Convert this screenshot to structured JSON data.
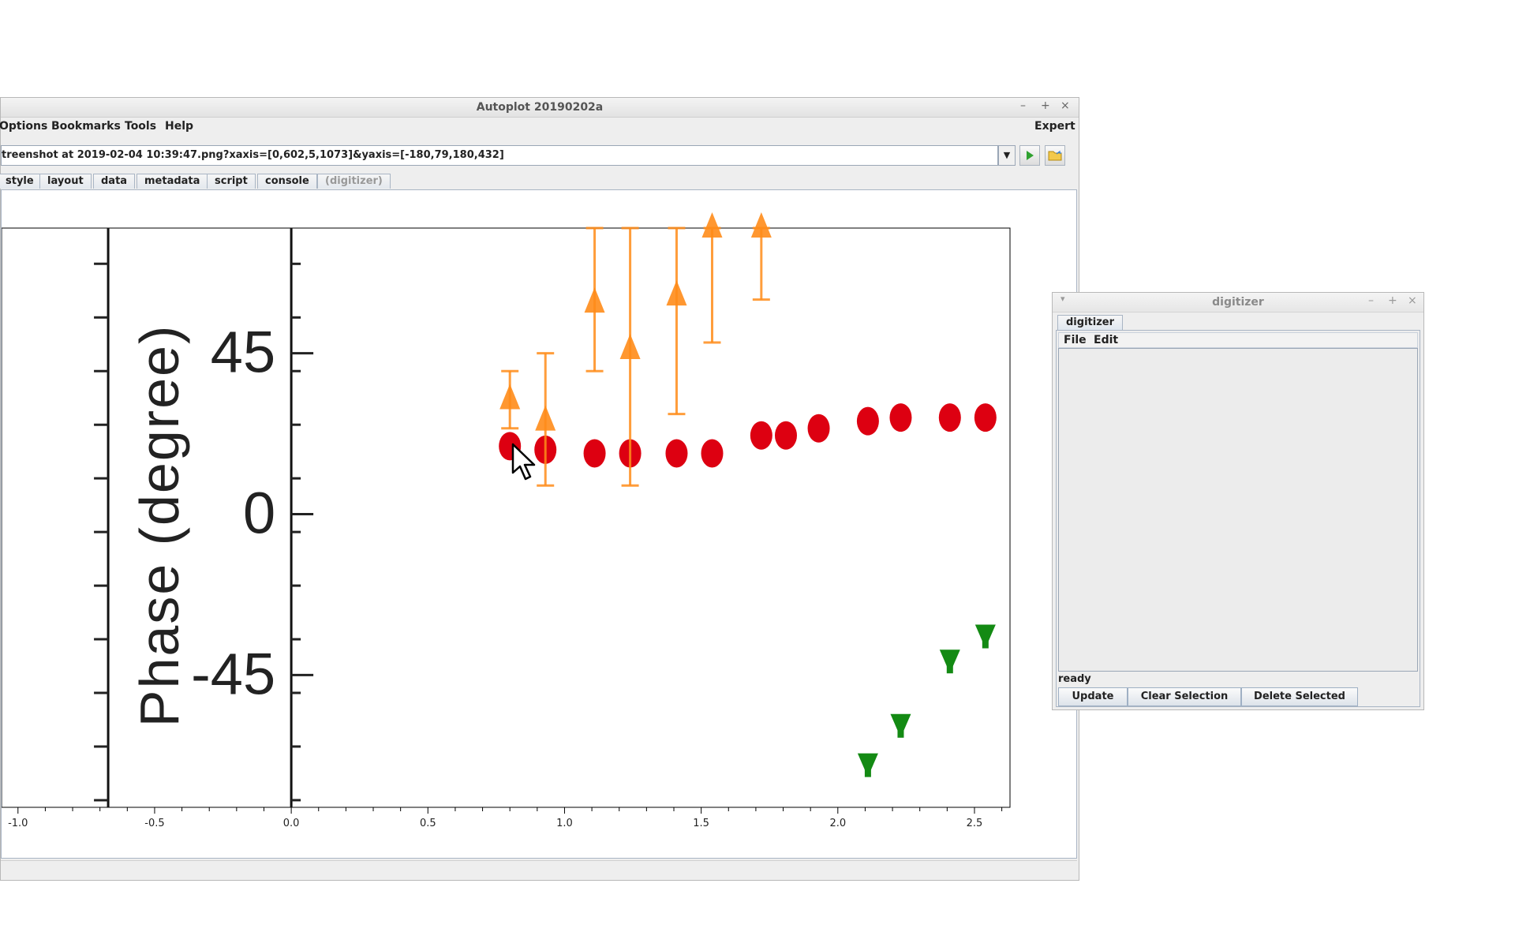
{
  "main_window": {
    "title": "Autoplot 20190202a",
    "controls": {
      "minimize": "–",
      "maximize": "+",
      "close": "×"
    },
    "menus": [
      "Options",
      "Bookmarks",
      "Tools",
      "Help"
    ],
    "expert_label": "Expert",
    "url": "treenshot at 2019-02-04 10:39:47.png?xaxis=[0,602,5,1073]&yaxis=[-180,79,180,432]",
    "dropdown_glyph": "▼",
    "tabs": [
      {
        "label": "style",
        "enabled": true
      },
      {
        "label": "layout",
        "enabled": true
      },
      {
        "label": "data",
        "enabled": true
      },
      {
        "label": "metadata",
        "enabled": true
      },
      {
        "label": "script",
        "enabled": true
      },
      {
        "label": "console",
        "enabled": true
      },
      {
        "label": "(digitizer)",
        "enabled": false
      }
    ]
  },
  "plot": {
    "y_label": "Phase (degree)",
    "y_ticks": [
      "45",
      "0",
      "-45"
    ],
    "x_ticks": [
      "-1.0",
      "-0.5",
      "0.0",
      "0.5",
      "1.0",
      "1.5",
      "2.0",
      "2.5"
    ]
  },
  "chart_data": {
    "type": "scatter",
    "x_range": [
      -1.06,
      2.63
    ],
    "y_range": [
      -82,
      80
    ],
    "series": [
      {
        "color": "#dd0011",
        "marker": "circle",
        "x": [
          0.8,
          0.93,
          1.11,
          1.24,
          1.41,
          1.54,
          1.72,
          1.81,
          1.93,
          2.11,
          2.23,
          2.41,
          2.54
        ],
        "y": [
          19,
          18,
          17,
          17,
          17,
          17,
          22,
          22,
          24,
          26,
          27,
          27,
          27
        ]
      },
      {
        "color": "#ff8c1a",
        "marker": "triangle-up",
        "x": [
          0.8,
          0.93,
          1.11,
          1.24,
          1.41,
          1.54,
          1.72
        ],
        "y": [
          32,
          26,
          59,
          46,
          61,
          80,
          80
        ],
        "err_low": [
          24,
          8,
          40,
          8,
          28,
          48,
          60
        ],
        "err_high": [
          40,
          45,
          80,
          80,
          80,
          80,
          80
        ]
      },
      {
        "color": "#138a13",
        "marker": "triangle-down",
        "x": [
          2.11,
          2.23,
          2.41,
          2.54
        ],
        "y": [
          -70,
          -59,
          -41,
          -34
        ]
      }
    ]
  },
  "digitizer": {
    "title": "digitizer",
    "tab": "digitizer",
    "menus": [
      "File",
      "Edit"
    ],
    "status": "ready",
    "buttons": [
      "Update",
      "Clear Selection",
      "Delete Selected"
    ]
  }
}
